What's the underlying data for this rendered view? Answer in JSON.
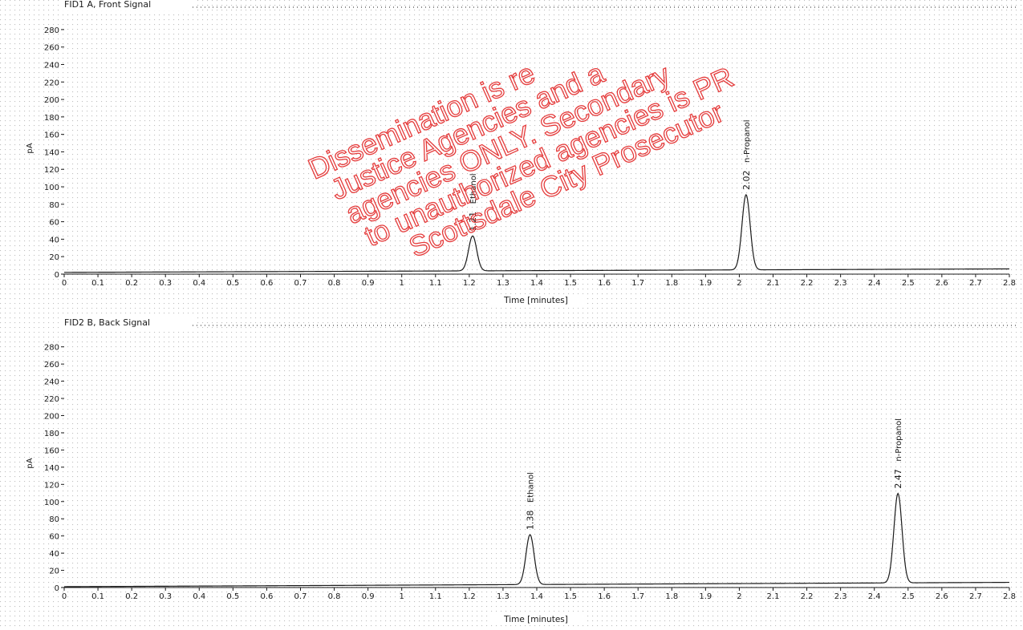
{
  "colors": {
    "ink": "#1a1a1a",
    "watermark": "#e53b3b",
    "dots": "#8a8a8a"
  },
  "chart_data": [
    {
      "type": "line",
      "title": "FID1 A, Front Signal",
      "xlabel": "Time [minutes]",
      "ylabel": "pA",
      "xlim": [
        0,
        2.8
      ],
      "ylim": [
        0,
        290
      ],
      "x_ticks": [
        "0",
        "0.1",
        "0.2",
        "0.3",
        "0.4",
        "0.5",
        "0.6",
        "0.7",
        "0.8",
        "0.9",
        "1",
        "1.1",
        "1.2",
        "1.3",
        "1.4",
        "1.5",
        "1.6",
        "1.7",
        "1.8",
        "1.9",
        "2",
        "2.1",
        "2.2",
        "2.3",
        "2.4",
        "2.5",
        "2.6",
        "2.7",
        "2.8"
      ],
      "y_ticks": [
        "0",
        "20",
        "40",
        "60",
        "80",
        "100",
        "120",
        "140",
        "160",
        "180",
        "200",
        "220",
        "240",
        "260",
        "280"
      ],
      "baseline_pA": [
        {
          "x": 0,
          "y": 2
        },
        {
          "x": 2.8,
          "y": 6
        }
      ],
      "peaks": [
        {
          "time": 1.21,
          "height_pA": 40,
          "label": "1.21",
          "name": "Ethanol"
        },
        {
          "time": 2.02,
          "height_pA": 86,
          "label": "2.02",
          "name": "n-Propanol"
        }
      ]
    },
    {
      "type": "line",
      "title": "FID2 B, Back Signal",
      "xlabel": "Time [minutes]",
      "ylabel": "pA",
      "xlim": [
        0,
        2.8
      ],
      "ylim": [
        0,
        290
      ],
      "x_ticks": [
        "0",
        "0.1",
        "0.2",
        "0.3",
        "0.4",
        "0.5",
        "0.6",
        "0.7",
        "0.8",
        "0.9",
        "1",
        "1.1",
        "1.2",
        "1.3",
        "1.4",
        "1.5",
        "1.6",
        "1.7",
        "1.8",
        "1.9",
        "2",
        "2.1",
        "2.2",
        "2.3",
        "2.4",
        "2.5",
        "2.6",
        "2.7",
        "2.8"
      ],
      "y_ticks": [
        "0",
        "20",
        "40",
        "60",
        "80",
        "100",
        "120",
        "140",
        "160",
        "180",
        "200",
        "220",
        "240",
        "260",
        "280"
      ],
      "baseline_pA": [
        {
          "x": 0,
          "y": 1
        },
        {
          "x": 2.8,
          "y": 6
        }
      ],
      "peaks": [
        {
          "time": 1.38,
          "height_pA": 58,
          "label": "1.38",
          "name": "Ethanol"
        },
        {
          "time": 2.47,
          "height_pA": 104,
          "label": "2.47",
          "name": "n-Propanol"
        }
      ]
    }
  ],
  "watermark": [
    "Dissemination is re",
    "Justice Agencies and a",
    "agencies ONLY. Secondary",
    "to unauthorized agencies is PR",
    "Scottsdale City Prosecutor"
  ]
}
